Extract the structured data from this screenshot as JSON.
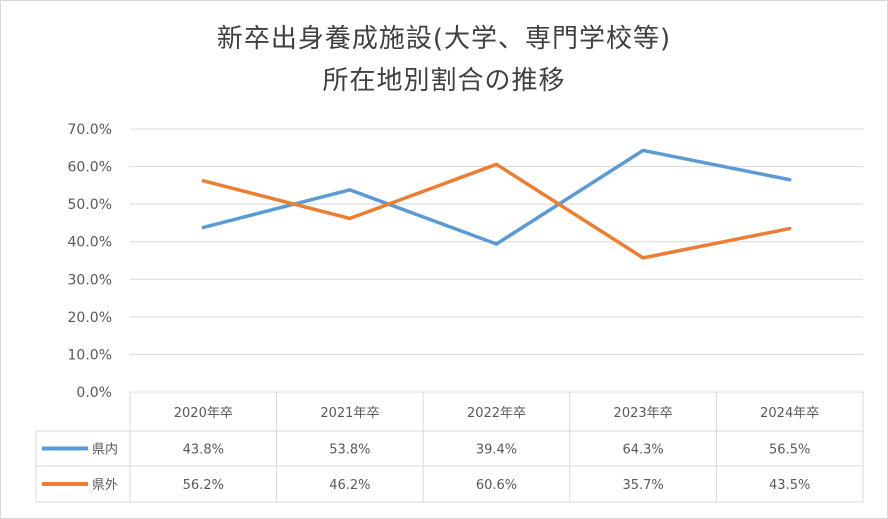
{
  "chart_data": {
    "type": "line",
    "title_line1": "新卒出身養成施設(大学、専門学校等)",
    "title_line2": "所在地別割合の推移",
    "categories": [
      "2020年卒",
      "2021年卒",
      "2022年卒",
      "2023年卒",
      "2024年卒"
    ],
    "ylim": [
      0,
      70
    ],
    "y_ticks": [
      "0.0%",
      "10.0%",
      "20.0%",
      "30.0%",
      "40.0%",
      "50.0%",
      "60.0%",
      "70.0%"
    ],
    "grid": true,
    "legend": "data-table",
    "series": [
      {
        "name": "県内",
        "color": "#5b9bd5",
        "values": [
          43.8,
          53.8,
          39.4,
          64.3,
          56.5
        ],
        "labels": [
          "43.8%",
          "53.8%",
          "39.4%",
          "64.3%",
          "56.5%"
        ]
      },
      {
        "name": "県外",
        "color": "#ed7d31",
        "values": [
          56.2,
          46.2,
          60.6,
          35.7,
          43.5
        ],
        "labels": [
          "56.2%",
          "46.2%",
          "60.6%",
          "35.7%",
          "43.5%"
        ]
      }
    ]
  }
}
